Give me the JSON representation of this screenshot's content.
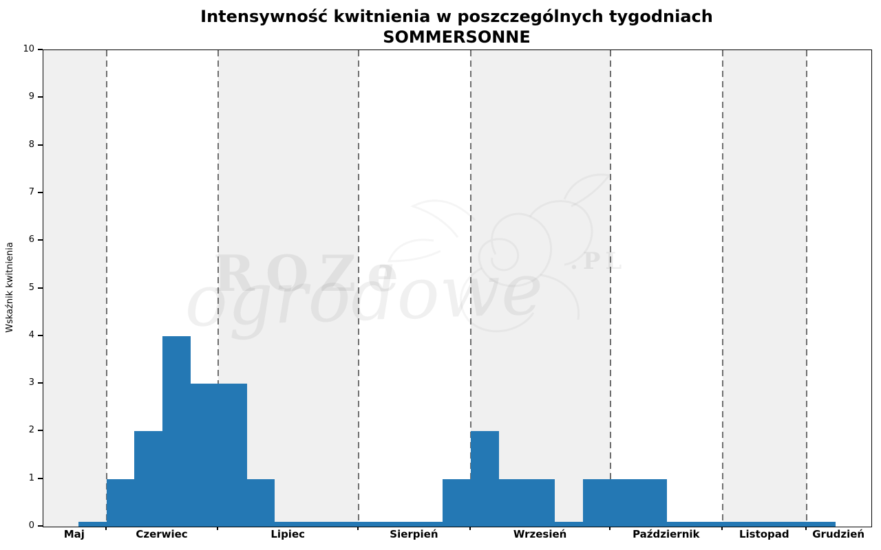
{
  "title": {
    "line1": "Intensywność kwitnienia w poszczególnych tygodniach",
    "line2": "SOMMERSONNE"
  },
  "ylabel": "Wskaźnik kwitnienia",
  "watermark": {
    "word1": "ROZe",
    "word2": "ogrodowe",
    "suffix": ".PL"
  },
  "chart_data": {
    "type": "bar",
    "title": "Intensywność kwitnienia w poszczególnych tygodniach SOMMERSONNE",
    "xlabel": "",
    "ylabel": "Wskaźnik kwitnienia",
    "ylim": [
      0,
      10
    ],
    "yticks": [
      0,
      1,
      2,
      3,
      4,
      5,
      6,
      7,
      8,
      9,
      10
    ],
    "grid": false,
    "legend": false,
    "x_unit": "tydzień (week index)",
    "xlim_weeks": [
      -1.25,
      28.3
    ],
    "bar_start_week": 0,
    "values": [
      0.1,
      1,
      2,
      4,
      3,
      3,
      1,
      0.1,
      0.1,
      0.1,
      0.1,
      0.1,
      0.1,
      1,
      2,
      1,
      1,
      0.1,
      1,
      1,
      1,
      0.1,
      0.1,
      0.1,
      0.1,
      0.1,
      0.1
    ],
    "months": [
      {
        "label": "Maj",
        "start": -1.25,
        "end": 1,
        "shaded": true
      },
      {
        "label": "Czerwiec",
        "start": 1,
        "end": 5,
        "shaded": false
      },
      {
        "label": "Lipiec",
        "start": 5,
        "end": 10,
        "shaded": true
      },
      {
        "label": "Sierpień",
        "start": 10,
        "end": 14,
        "shaded": false
      },
      {
        "label": "Wrzesień",
        "start": 14,
        "end": 19,
        "shaded": true
      },
      {
        "label": "Październik",
        "start": 19,
        "end": 23,
        "shaded": false
      },
      {
        "label": "Listopad",
        "start": 23,
        "end": 26,
        "shaded": true
      },
      {
        "label": "Grudzień",
        "start": 26,
        "end": 28.3,
        "shaded": false
      }
    ],
    "colors": {
      "bar": "#2478b4",
      "shaded_band": "#f0f0f0",
      "unshaded_band": "#ffffff",
      "month_boundary_dash": "#6e6e6e",
      "axis": "#000000",
      "background": "#ffffff"
    }
  }
}
